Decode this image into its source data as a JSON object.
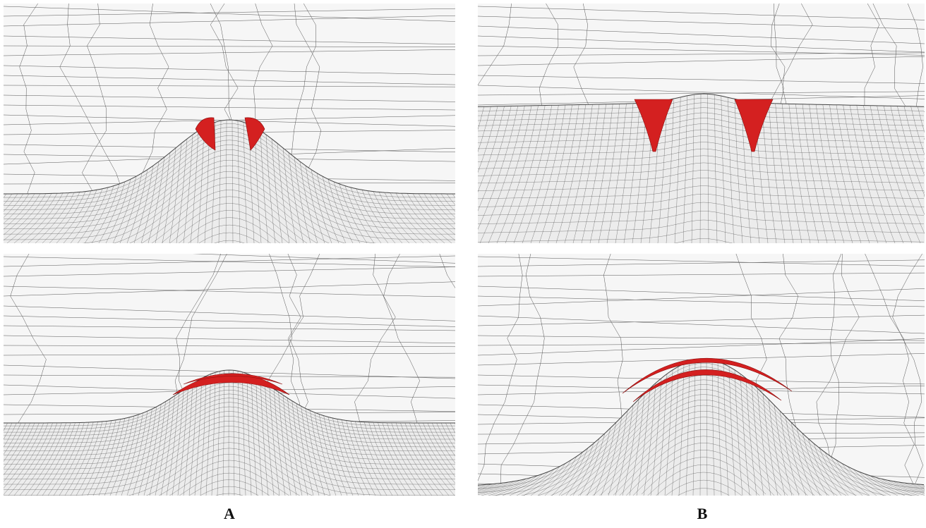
{
  "labels": {
    "left": "A",
    "right": "B"
  }
}
